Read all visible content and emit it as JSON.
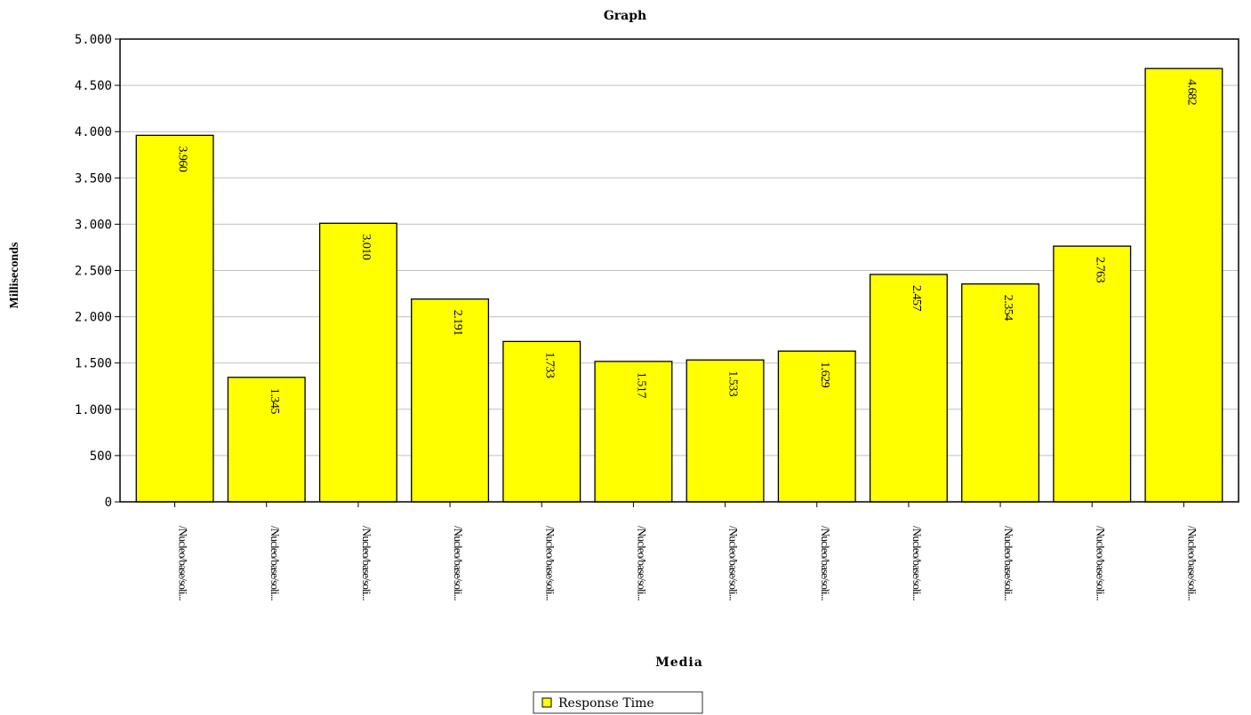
{
  "chart_data": {
    "type": "bar",
    "title": "Graph",
    "xlabel": "Media",
    "ylabel": "Milliseconds",
    "ylim": [
      0,
      5000
    ],
    "yticks": [
      0,
      500,
      1000,
      1500,
      2000,
      2500,
      3000,
      3500,
      4000,
      4500,
      5000
    ],
    "ytick_labels": [
      "0",
      "500",
      "1.000",
      "1.500",
      "2.000",
      "2.500",
      "3.000",
      "3.500",
      "4.000",
      "4.500",
      "5.000"
    ],
    "grid": true,
    "legend_position": "bottom-center",
    "categories": [
      "/Nucleo/base/soli...",
      "/Nucleo/base/soli...",
      "/Nucleo/base/soli...",
      "/Nucleo/base/soli...",
      "/Nucleo/base/soli...",
      "/Nucleo/base/soli...",
      "/Nucleo/base/soli...",
      "/Nucleo/base/soli...",
      "/Nucleo/base/soli...",
      "/Nucleo/base/soli...",
      "/Nucleo/base/soli...",
      "/Nucleo/base/soli..."
    ],
    "series": [
      {
        "name": "Response Time",
        "color": "#ffff00",
        "values": [
          3960,
          1345,
          3010,
          2191,
          1733,
          1517,
          1533,
          1629,
          2457,
          2354,
          2763,
          4682
        ],
        "labels": [
          "3.960",
          "1.345",
          "3.010",
          "2.191",
          "1.733",
          "1.517",
          "1.533",
          "1.629",
          "2.457",
          "2.354",
          "2.763",
          "4.682"
        ]
      }
    ]
  }
}
